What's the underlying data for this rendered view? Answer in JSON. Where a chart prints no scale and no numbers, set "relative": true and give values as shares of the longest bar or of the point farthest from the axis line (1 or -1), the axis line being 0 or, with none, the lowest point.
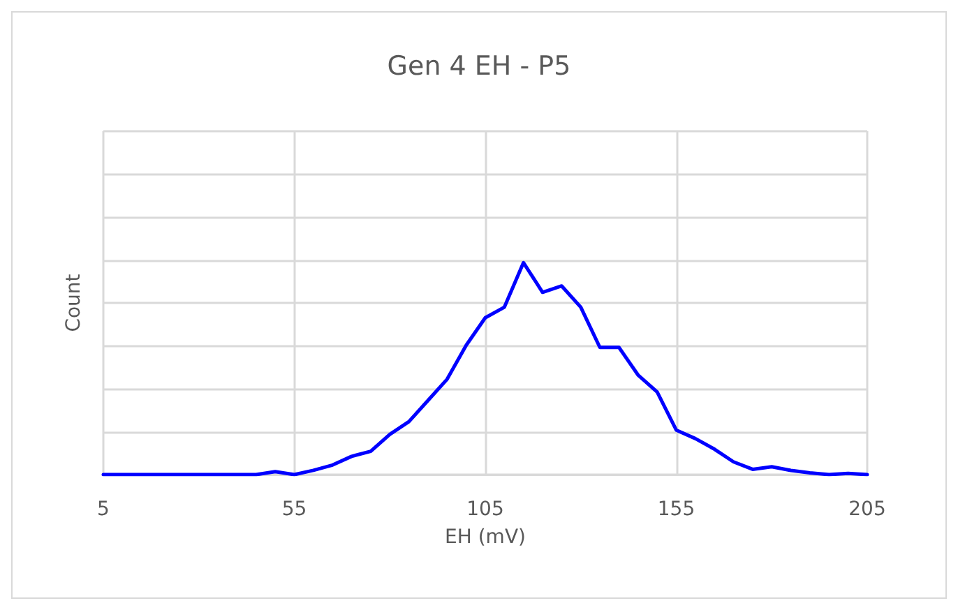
{
  "chart_data": {
    "type": "line",
    "title": "Gen 4 EH - P5",
    "xlabel": "EH (mV)",
    "ylabel": "Count",
    "relative": true,
    "grid": true,
    "marker": "none",
    "line_style": "solid",
    "xlim": [
      5,
      205
    ],
    "xticks": [
      5,
      55,
      105,
      155,
      205
    ],
    "x": [
      5,
      10,
      15,
      20,
      25,
      30,
      35,
      40,
      45,
      50,
      55,
      60,
      65,
      70,
      75,
      80,
      85,
      90,
      95,
      100,
      105,
      110,
      115,
      120,
      125,
      130,
      135,
      140,
      145,
      150,
      155,
      160,
      165,
      170,
      175,
      180,
      185,
      190,
      195,
      200,
      205
    ],
    "series": [
      {
        "color": "#0000ff",
        "values": [
          0,
          0,
          0,
          0,
          0,
          0,
          0,
          0,
          0,
          0.014,
          0,
          0.02,
          0.045,
          0.086,
          0.11,
          0.19,
          0.25,
          0.35,
          0.45,
          0.61,
          0.74,
          0.79,
          1,
          0.86,
          0.89,
          0.79,
          0.6,
          0.6,
          0.47,
          0.39,
          0.21,
          0.17,
          0.12,
          0.06,
          0.025,
          0.037,
          0.02,
          0.008,
          0,
          0.006,
          0
        ]
      }
    ]
  }
}
